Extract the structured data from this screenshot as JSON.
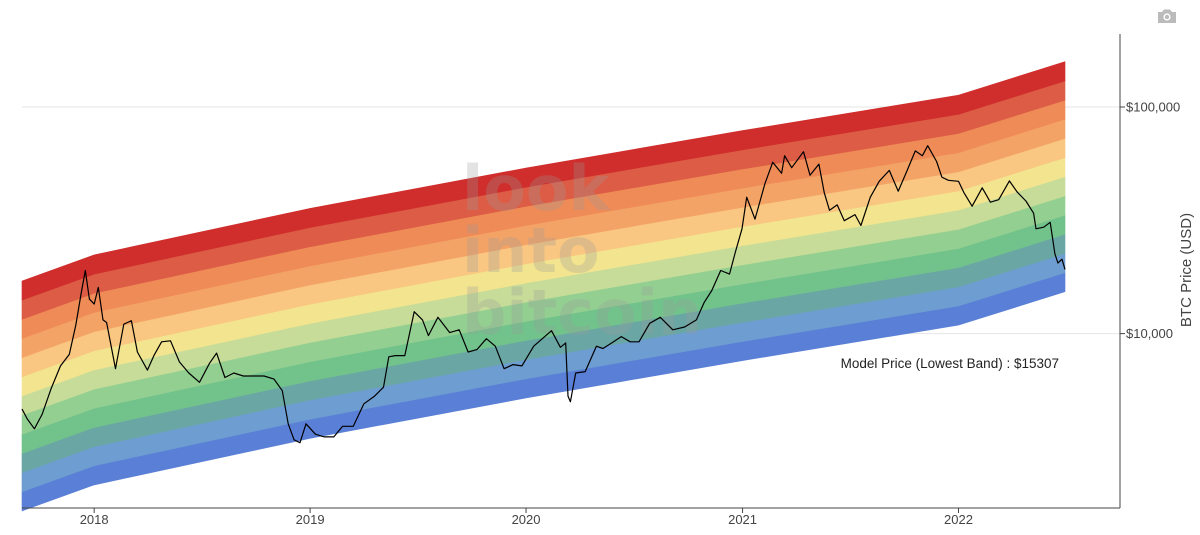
{
  "toolbar": {
    "camera_icon": "camera-icon"
  },
  "watermark": {
    "lines": [
      "look",
      "into",
      "bitcoin"
    ]
  },
  "chart_data": {
    "type": "line",
    "title": "",
    "xlabel": "",
    "ylabel": "BTC Price (USD)",
    "y_scale": "log",
    "y_axis_side": "right",
    "x_range": [
      "2017-09-01",
      "2022-10-01"
    ],
    "ylim": [
      1700,
      210000
    ],
    "x_ticks": [
      {
        "value": "2018-01-01",
        "label": "2018"
      },
      {
        "value": "2019-01-01",
        "label": "2019"
      },
      {
        "value": "2020-01-01",
        "label": "2020"
      },
      {
        "value": "2021-01-01",
        "label": "2021"
      },
      {
        "value": "2022-01-01",
        "label": "2022"
      }
    ],
    "y_ticks": [
      {
        "value": 10000,
        "label": "$10,000"
      },
      {
        "value": 100000,
        "label": "$100,000"
      }
    ],
    "grid": {
      "horizontal": true,
      "vertical": false
    },
    "rainbow_bands": {
      "x": [
        "2017-09-01",
        "2018-01-01",
        "2019-01-01",
        "2020-01-01",
        "2021-01-01",
        "2022-01-01",
        "2022-06-30"
      ],
      "lowest_band_price": [
        1650,
        2150,
        3450,
        5200,
        7600,
        10900,
        15307
      ],
      "band_ratio": 1.215,
      "colors": [
        "#5a7fd6",
        "#6d9dd1",
        "#6aa7a4",
        "#72c28c",
        "#93cf90",
        "#c7dc98",
        "#f3e48f",
        "#f9c781",
        "#f4a366",
        "#ef8b57",
        "#dd5c45",
        "#cf2e2c"
      ]
    },
    "series": [
      {
        "name": "BTC Price",
        "color": "#000000",
        "x": [
          "2017-09-01",
          "2017-09-10",
          "2017-09-22",
          "2017-10-05",
          "2017-10-20",
          "2017-11-05",
          "2017-11-20",
          "2017-12-01",
          "2017-12-10",
          "2017-12-17",
          "2017-12-24",
          "2018-01-01",
          "2018-01-08",
          "2018-01-16",
          "2018-01-22",
          "2018-02-06",
          "2018-02-20",
          "2018-03-05",
          "2018-03-15",
          "2018-04-01",
          "2018-04-12",
          "2018-04-25",
          "2018-05-10",
          "2018-05-25",
          "2018-06-10",
          "2018-06-28",
          "2018-07-15",
          "2018-07-27",
          "2018-08-10",
          "2018-08-25",
          "2018-09-10",
          "2018-09-25",
          "2018-10-15",
          "2018-11-01",
          "2018-11-15",
          "2018-11-25",
          "2018-12-05",
          "2018-12-15",
          "2018-12-25",
          "2019-01-10",
          "2019-01-25",
          "2019-02-10",
          "2019-02-25",
          "2019-03-15",
          "2019-04-02",
          "2019-04-20",
          "2019-05-05",
          "2019-05-14",
          "2019-05-25",
          "2019-06-10",
          "2019-06-26",
          "2019-07-10",
          "2019-07-20",
          "2019-08-05",
          "2019-08-25",
          "2019-09-10",
          "2019-09-25",
          "2019-10-10",
          "2019-10-26",
          "2019-11-10",
          "2019-11-25",
          "2019-12-10",
          "2019-12-25",
          "2020-01-14",
          "2020-02-13",
          "2020-02-28",
          "2020-03-08",
          "2020-03-12",
          "2020-03-16",
          "2020-03-25",
          "2020-04-10",
          "2020-04-29",
          "2020-05-10",
          "2020-05-25",
          "2020-06-10",
          "2020-06-25",
          "2020-07-10",
          "2020-07-28",
          "2020-08-15",
          "2020-09-05",
          "2020-09-25",
          "2020-10-15",
          "2020-10-28",
          "2020-11-10",
          "2020-11-25",
          "2020-12-10",
          "2020-12-20",
          "2020-12-31",
          "2021-01-08",
          "2021-01-22",
          "2021-02-08",
          "2021-02-21",
          "2021-03-08",
          "2021-03-13",
          "2021-03-25",
          "2021-04-14",
          "2021-04-25",
          "2021-05-10",
          "2021-05-19",
          "2021-05-28",
          "2021-06-10",
          "2021-06-22",
          "2021-07-10",
          "2021-07-20",
          "2021-08-05",
          "2021-08-20",
          "2021-09-06",
          "2021-09-21",
          "2021-10-05",
          "2021-10-20",
          "2021-11-01",
          "2021-11-10",
          "2021-11-25",
          "2021-12-04",
          "2021-12-15",
          "2022-01-01",
          "2022-01-10",
          "2022-01-24",
          "2022-02-10",
          "2022-02-24",
          "2022-03-10",
          "2022-03-28",
          "2022-04-10",
          "2022-04-25",
          "2022-05-08",
          "2022-05-12",
          "2022-05-25",
          "2022-06-05",
          "2022-06-13",
          "2022-06-18",
          "2022-06-25",
          "2022-06-30"
        ],
        "y": [
          4650,
          4200,
          3800,
          4400,
          5700,
          7200,
          8100,
          10900,
          15100,
          19000,
          14200,
          13500,
          16000,
          11500,
          11200,
          7000,
          11000,
          11400,
          8300,
          6900,
          8000,
          9200,
          9300,
          7500,
          6700,
          6100,
          7400,
          8200,
          6400,
          6700,
          6500,
          6500,
          6500,
          6300,
          5600,
          4000,
          3400,
          3300,
          4000,
          3600,
          3500,
          3500,
          3900,
          3900,
          4900,
          5300,
          5800,
          7900,
          8000,
          8000,
          12500,
          11500,
          9800,
          11800,
          10100,
          10400,
          8300,
          8500,
          9500,
          8800,
          7000,
          7300,
          7200,
          8800,
          10300,
          8700,
          9100,
          5300,
          5000,
          6700,
          6800,
          8800,
          8600,
          9100,
          9700,
          9200,
          9200,
          11100,
          11800,
          10400,
          10700,
          11500,
          13700,
          15500,
          19000,
          18300,
          23000,
          29000,
          40000,
          32000,
          46000,
          57000,
          51000,
          61000,
          54000,
          63500,
          50000,
          56000,
          42000,
          35000,
          37000,
          31500,
          33500,
          30000,
          40000,
          47000,
          52500,
          42500,
          51500,
          64000,
          61000,
          67500,
          57500,
          49000,
          47500,
          47000,
          42000,
          36500,
          44000,
          38000,
          39000,
          47200,
          42200,
          38500,
          34000,
          29000,
          29500,
          31000,
          22500,
          20500,
          21300,
          19200
        ]
      }
    ],
    "annotations": [
      {
        "x": "2022-06-30",
        "y": 15307,
        "text": "Model Price (Lowest Band) : $15307"
      }
    ]
  }
}
